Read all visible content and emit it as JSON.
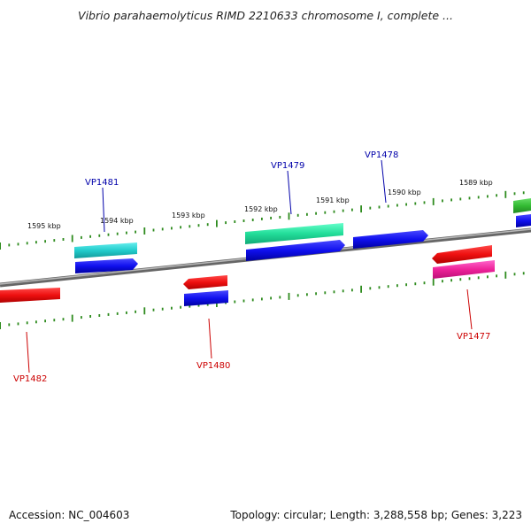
{
  "title": "Vibrio parahaemolyticus RIMD 2210633 chromosome I, complete ...",
  "footer": {
    "accession": "Accession: NC_004603",
    "summary": "Topology: circular; Length: 3,288,558 bp; Genes: 3,223"
  },
  "ticks": [
    {
      "label": "1595 kbp"
    },
    {
      "label": "1594 kbp"
    },
    {
      "label": "1593 kbp"
    },
    {
      "label": "1592 kbp"
    },
    {
      "label": "1591 kbp"
    },
    {
      "label": "1590 kbp"
    },
    {
      "label": "1589 kbp"
    }
  ],
  "genes": [
    {
      "name": "VP1481",
      "strand": "+",
      "color": "#0000aa"
    },
    {
      "name": "VP1479",
      "strand": "+",
      "color": "#0000aa"
    },
    {
      "name": "VP1478",
      "strand": "+",
      "color": "#0000aa"
    },
    {
      "name": "VP1482",
      "strand": "-",
      "color": "#cc0000"
    },
    {
      "name": "VP1480",
      "strand": "-",
      "color": "#cc0000"
    },
    {
      "name": "VP1477",
      "strand": "-",
      "color": "#cc0000"
    }
  ],
  "colors": {
    "backbone": "#888888",
    "tick": "#2e8b1e",
    "forward_cds": "#1010ee",
    "reverse_cds": "#ee1010",
    "cyan_feature": "#22cccc",
    "teal_feature": "#22dd99",
    "pink_feature": "#ee2299",
    "green_feature": "#33bb33"
  }
}
